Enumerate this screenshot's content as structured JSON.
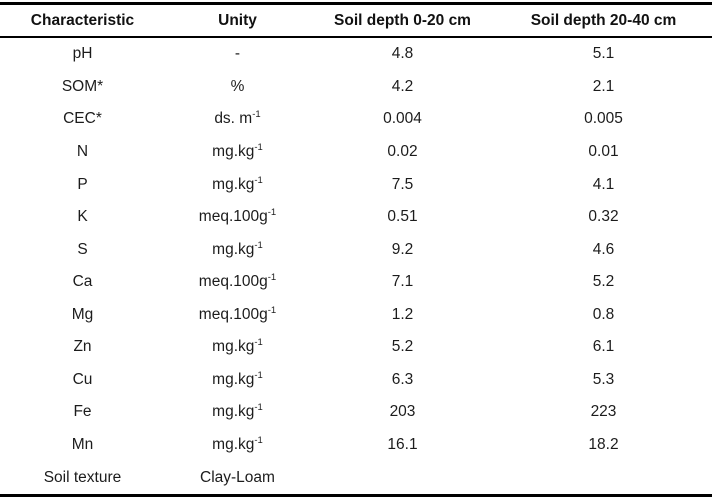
{
  "table": {
    "columns": [
      "Characteristic",
      "Unity",
      "Soil depth 0-20 cm",
      "Soil depth 20-40 cm"
    ],
    "rows": [
      {
        "characteristic": "pH",
        "unity": "-",
        "unity_sup": "",
        "depth_0_20": "4.8",
        "depth_20_40": "5.1"
      },
      {
        "characteristic": "SOM*",
        "unity": "%",
        "unity_sup": "",
        "depth_0_20": "4.2",
        "depth_20_40": "2.1"
      },
      {
        "characteristic": "CEC*",
        "unity": "ds. m",
        "unity_sup": "-1",
        "depth_0_20": "0.004",
        "depth_20_40": "0.005"
      },
      {
        "characteristic": "N",
        "unity": "mg.kg",
        "unity_sup": "-1",
        "depth_0_20": "0.02",
        "depth_20_40": "0.01"
      },
      {
        "characteristic": "P",
        "unity": "mg.kg",
        "unity_sup": "-1",
        "depth_0_20": "7.5",
        "depth_20_40": "4.1"
      },
      {
        "characteristic": "K",
        "unity": "meq.100g",
        "unity_sup": "-1",
        "depth_0_20": "0.51",
        "depth_20_40": "0.32"
      },
      {
        "characteristic": "S",
        "unity": "mg.kg",
        "unity_sup": "-1",
        "depth_0_20": "9.2",
        "depth_20_40": "4.6"
      },
      {
        "characteristic": "Ca",
        "unity": "meq.100g",
        "unity_sup": "-1",
        "depth_0_20": "7.1",
        "depth_20_40": "5.2"
      },
      {
        "characteristic": "Mg",
        "unity": "meq.100g",
        "unity_sup": "-1",
        "depth_0_20": "1.2",
        "depth_20_40": "0.8"
      },
      {
        "characteristic": "Zn",
        "unity": "mg.kg",
        "unity_sup": "-1",
        "depth_0_20": "5.2",
        "depth_20_40": "6.1"
      },
      {
        "characteristic": "Cu",
        "unity": "mg.kg",
        "unity_sup": "-1",
        "depth_0_20": "6.3",
        "depth_20_40": "5.3"
      },
      {
        "characteristic": "Fe",
        "unity": "mg.kg",
        "unity_sup": "-1",
        "depth_0_20": "203",
        "depth_20_40": "223"
      },
      {
        "characteristic": "Mn",
        "unity": "mg.kg",
        "unity_sup": "-1",
        "depth_0_20": "16.1",
        "depth_20_40": "18.2"
      },
      {
        "characteristic": "Soil texture",
        "unity": "Clay-Loam",
        "unity_sup": "",
        "depth_0_20": "",
        "depth_20_40": ""
      }
    ]
  }
}
